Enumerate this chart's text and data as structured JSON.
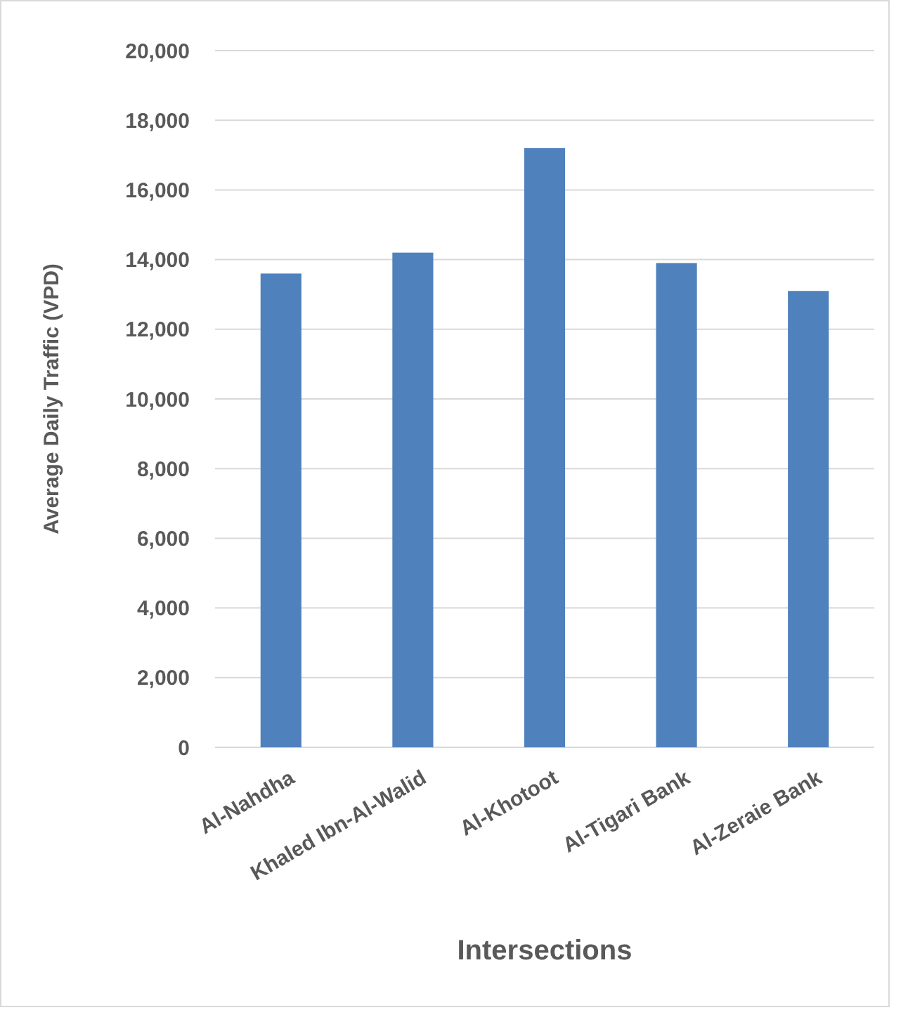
{
  "chart_data": {
    "type": "bar",
    "xlabel": "Intersections",
    "ylabel": "Average Daily Traffic (VPD)",
    "categories": [
      "Al-Nahdha",
      "Khaled Ibn-Al-Walid",
      "Al-Khotoot",
      "Al-Tigari Bank",
      "Al-Zeraie Bank"
    ],
    "values": [
      13600,
      14200,
      17200,
      13900,
      13100
    ],
    "color": "#4f81bd",
    "ylim": [
      0,
      20000
    ],
    "yticks": [
      {
        "value": 0,
        "label": "0"
      },
      {
        "value": 2000,
        "label": "2,000"
      },
      {
        "value": 4000,
        "label": "4,000"
      },
      {
        "value": 6000,
        "label": "6,000"
      },
      {
        "value": 8000,
        "label": "8,000"
      },
      {
        "value": 10000,
        "label": "10,000"
      },
      {
        "value": 12000,
        "label": "12,000"
      },
      {
        "value": 14000,
        "label": "14,000"
      },
      {
        "value": 16000,
        "label": "16,000"
      },
      {
        "value": 18000,
        "label": "18,000"
      },
      {
        "value": 20000,
        "label": "20,000"
      }
    ],
    "grid": "y"
  }
}
